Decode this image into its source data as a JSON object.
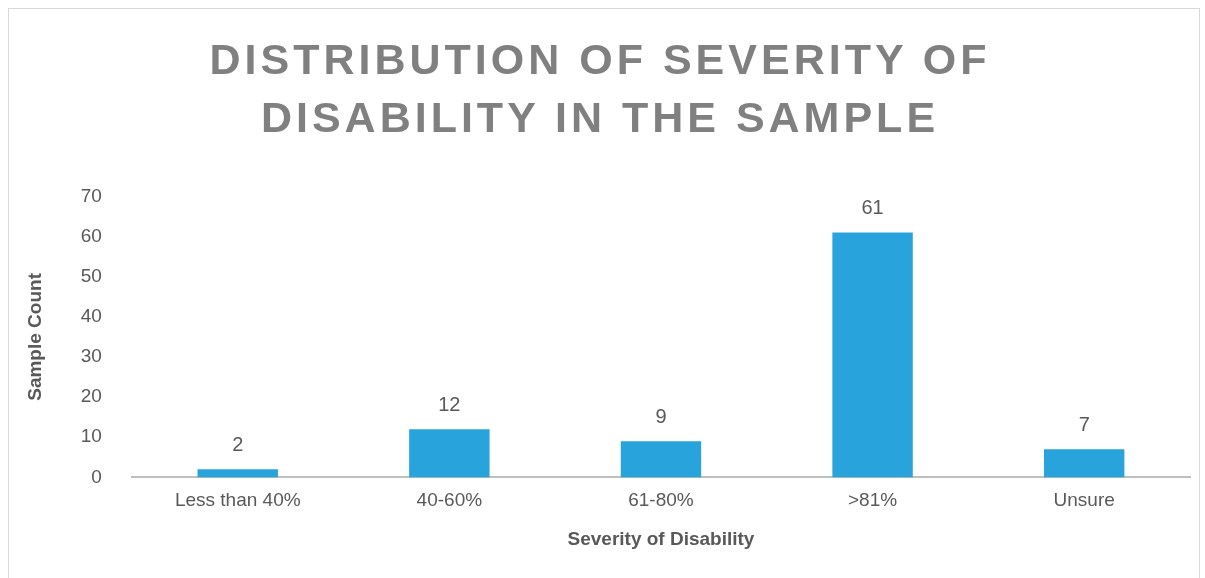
{
  "chart_data": {
    "type": "bar",
    "title": "DISTRIBUTION OF SEVERITY OF DISABILITY IN THE SAMPLE",
    "xlabel": "Severity of Disability",
    "ylabel": "Sample Count",
    "categories": [
      "Less than 40%",
      "40-60%",
      "61-80%",
      ">81%",
      "Unsure"
    ],
    "values": [
      2,
      12,
      9,
      61,
      7
    ],
    "color": "#29a3dc",
    "ylim": [
      0,
      70
    ],
    "yticks": [
      0,
      10,
      20,
      30,
      40,
      50,
      60,
      70
    ],
    "grid": false,
    "data_labels": true
  }
}
